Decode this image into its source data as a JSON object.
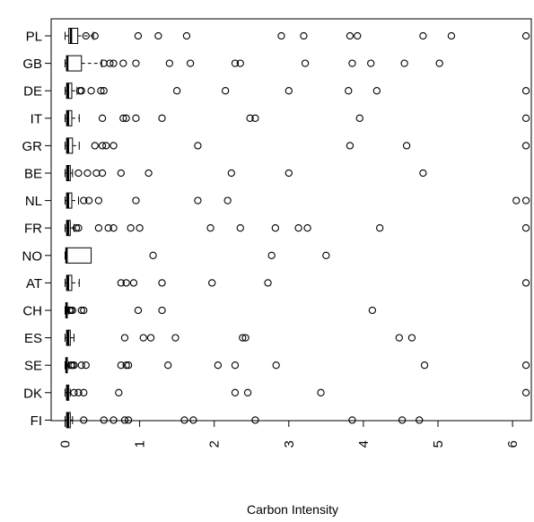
{
  "chart_data": {
    "type": "boxplot",
    "orientation": "horizontal",
    "xlabel": "Carbon Intensity",
    "ylabel": "",
    "xlim": [
      -0.2,
      6.3
    ],
    "x_ticks": [
      0,
      1,
      2,
      3,
      4,
      5,
      6
    ],
    "x_tick_labels_rotated": true,
    "grid": false,
    "categories": [
      "PL",
      "GB",
      "DE",
      "IT",
      "GR",
      "BE",
      "NL",
      "FR",
      "NO",
      "AT",
      "CH",
      "ES",
      "SE",
      "DK",
      "FI"
    ],
    "boxes": [
      {
        "category": "PL",
        "whisker_low": 0.0,
        "q1": 0.05,
        "median": 0.08,
        "q3": 0.17,
        "whisker_high": 0.38,
        "outliers": [
          0.28,
          0.4,
          0.98,
          1.25,
          1.63,
          2.9,
          3.2,
          3.82,
          3.92,
          4.8,
          5.18,
          6.18
        ]
      },
      {
        "category": "GB",
        "whisker_low": 0.0,
        "q1": 0.02,
        "median": 0.03,
        "q3": 0.22,
        "whisker_high": 0.49,
        "outliers": [
          0.52,
          0.6,
          0.65,
          0.78,
          0.95,
          1.4,
          1.68,
          2.28,
          2.35,
          3.22,
          3.85,
          4.1,
          4.55,
          5.02
        ]
      },
      {
        "category": "DE",
        "whisker_low": 0.0,
        "q1": 0.02,
        "median": 0.04,
        "q3": 0.09,
        "whisker_high": 0.16,
        "outliers": [
          0.2,
          0.22,
          0.35,
          0.48,
          0.52,
          1.5,
          2.15,
          3.0,
          3.8,
          4.18,
          6.18
        ]
      },
      {
        "category": "IT",
        "whisker_low": 0.0,
        "q1": 0.02,
        "median": 0.04,
        "q3": 0.09,
        "whisker_high": 0.19,
        "outliers": [
          0.5,
          0.78,
          0.82,
          0.95,
          1.3,
          2.48,
          2.55,
          3.95,
          6.18
        ]
      },
      {
        "category": "GR",
        "whisker_low": 0.0,
        "q1": 0.02,
        "median": 0.04,
        "q3": 0.1,
        "whisker_high": 0.19,
        "outliers": [
          0.4,
          0.5,
          0.55,
          0.65,
          1.78,
          3.82,
          4.58,
          6.18
        ]
      },
      {
        "category": "BE",
        "whisker_low": 0.0,
        "q1": 0.02,
        "median": 0.04,
        "q3": 0.07,
        "whisker_high": 0.1,
        "outliers": [
          0.18,
          0.3,
          0.42,
          0.5,
          0.75,
          1.12,
          2.23,
          3.0,
          4.8
        ]
      },
      {
        "category": "NL",
        "whisker_low": 0.0,
        "q1": 0.02,
        "median": 0.04,
        "q3": 0.09,
        "whisker_high": 0.18,
        "outliers": [
          0.25,
          0.32,
          0.45,
          0.95,
          1.78,
          2.18,
          6.05,
          6.18
        ]
      },
      {
        "category": "FR",
        "whisker_low": 0.0,
        "q1": 0.02,
        "median": 0.04,
        "q3": 0.07,
        "whisker_high": 0.12,
        "outliers": [
          0.15,
          0.18,
          0.45,
          0.58,
          0.65,
          0.88,
          1.0,
          1.95,
          2.35,
          2.82,
          3.13,
          3.25,
          4.22,
          6.18
        ]
      },
      {
        "category": "NO",
        "whisker_low": 0.0,
        "q1": 0.01,
        "median": 0.02,
        "q3": 0.35,
        "whisker_high": 0.35,
        "outliers": [
          1.18,
          2.77,
          3.5
        ]
      },
      {
        "category": "AT",
        "whisker_low": 0.0,
        "q1": 0.02,
        "median": 0.04,
        "q3": 0.09,
        "whisker_high": 0.19,
        "outliers": [
          0.75,
          0.82,
          0.92,
          1.3,
          1.97,
          2.72,
          6.18
        ]
      },
      {
        "category": "CH",
        "whisker_low": 0.0,
        "q1": 0.01,
        "median": 0.02,
        "q3": 0.03,
        "whisker_high": 0.05,
        "outliers": [
          0.06,
          0.08,
          0.1,
          0.22,
          0.25,
          0.98,
          1.3,
          4.12
        ]
      },
      {
        "category": "ES",
        "whisker_low": 0.0,
        "q1": 0.02,
        "median": 0.04,
        "q3": 0.07,
        "whisker_high": 0.12,
        "outliers": [
          0.8,
          1.05,
          1.15,
          1.48,
          2.38,
          2.42,
          4.48,
          4.65
        ]
      },
      {
        "category": "SE",
        "whisker_low": 0.0,
        "q1": 0.01,
        "median": 0.02,
        "q3": 0.03,
        "whisker_high": 0.05,
        "outliers": [
          0.08,
          0.1,
          0.12,
          0.22,
          0.28,
          0.75,
          0.82,
          0.85,
          1.38,
          2.05,
          2.28,
          2.83,
          4.82,
          6.18
        ]
      },
      {
        "category": "DK",
        "whisker_low": 0.0,
        "q1": 0.02,
        "median": 0.03,
        "q3": 0.05,
        "whisker_high": 0.07,
        "outliers": [
          0.12,
          0.18,
          0.25,
          0.72,
          2.28,
          2.45,
          3.43,
          6.18
        ]
      },
      {
        "category": "FI",
        "whisker_low": 0.0,
        "q1": 0.02,
        "median": 0.04,
        "q3": 0.07,
        "whisker_high": 0.1,
        "outliers": [
          0.25,
          0.52,
          0.65,
          0.8,
          0.85,
          1.6,
          1.72,
          2.55,
          3.85,
          4.52,
          4.75
        ]
      }
    ]
  }
}
